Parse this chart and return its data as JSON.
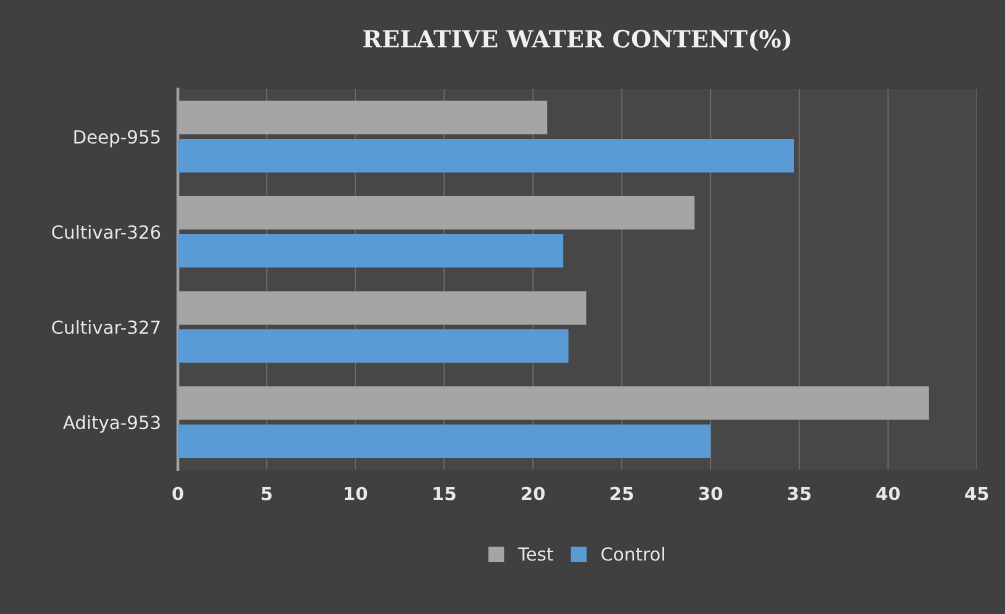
{
  "chart_data": {
    "type": "bar",
    "orientation": "horizontal",
    "title": "RELATIVE WATER CONTENT(%)",
    "categories": [
      "Deep-955",
      "Cultivar-326",
      "Cultivar-327",
      "Aditya-953"
    ],
    "series": [
      {
        "name": "Test",
        "color": "#a5a5a5",
        "values": [
          20.8,
          29.1,
          23.0,
          42.3
        ]
      },
      {
        "name": "Control",
        "color": "#5b9bd5",
        "values": [
          34.7,
          21.7,
          22.0,
          30.0
        ]
      }
    ],
    "xlim": [
      0,
      45
    ],
    "xticks": [
      0,
      5,
      10,
      15,
      20,
      25,
      30,
      35,
      40,
      45
    ],
    "grid": "x",
    "legend": "bottom"
  }
}
